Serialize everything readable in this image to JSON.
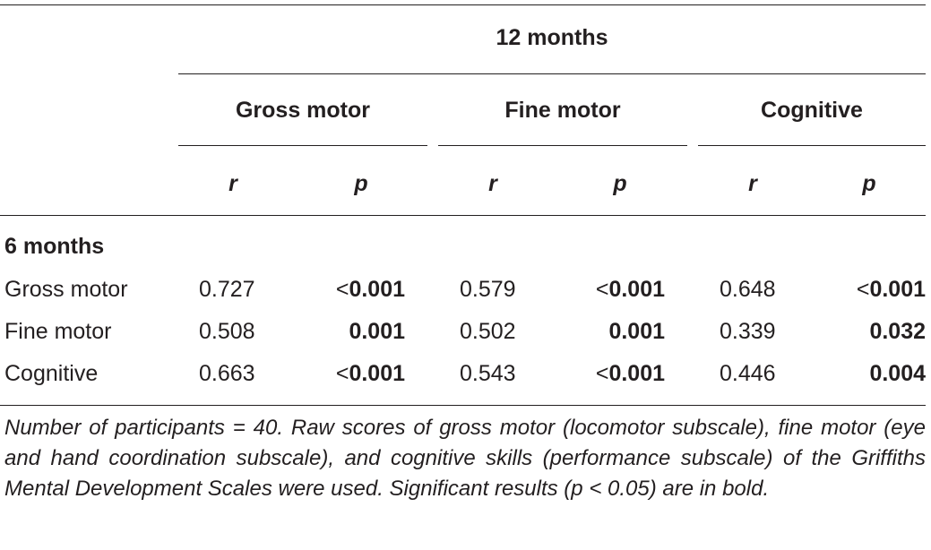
{
  "header": {
    "group_label": "12 months",
    "columns": [
      {
        "label": "Gross motor",
        "r": "r",
        "p": "p"
      },
      {
        "label": "Fine motor",
        "r": "r",
        "p": "p"
      },
      {
        "label": "Cognitive",
        "r": "r",
        "p": "p"
      }
    ]
  },
  "section_label": "6 months",
  "rows": [
    {
      "label": "Gross motor",
      "cells": [
        {
          "r": "0.727",
          "p_sign": "<",
          "p": "0.001"
        },
        {
          "r": "0.579",
          "p_sign": "<",
          "p": "0.001"
        },
        {
          "r": "0.648",
          "p_sign": "<",
          "p": "0.001"
        }
      ]
    },
    {
      "label": "Fine motor",
      "cells": [
        {
          "r": "0.508",
          "p_sign": "",
          "p": "0.001"
        },
        {
          "r": "0.502",
          "p_sign": "",
          "p": "0.001"
        },
        {
          "r": "0.339",
          "p_sign": "",
          "p": "0.032"
        }
      ]
    },
    {
      "label": "Cognitive",
      "cells": [
        {
          "r": "0.663",
          "p_sign": "<",
          "p": "0.001"
        },
        {
          "r": "0.543",
          "p_sign": "<",
          "p": "0.001"
        },
        {
          "r": "0.446",
          "p_sign": "",
          "p": "0.004"
        }
      ]
    }
  ],
  "footnote": "Number of participants = 40. Raw scores of gross motor (locomotor subscale), fine motor (eye and hand coordination subscale), and cognitive skills (performance subscale) of the Griffiths Mental Development Scales were used. Significant results (p < 0.05) are in bold."
}
